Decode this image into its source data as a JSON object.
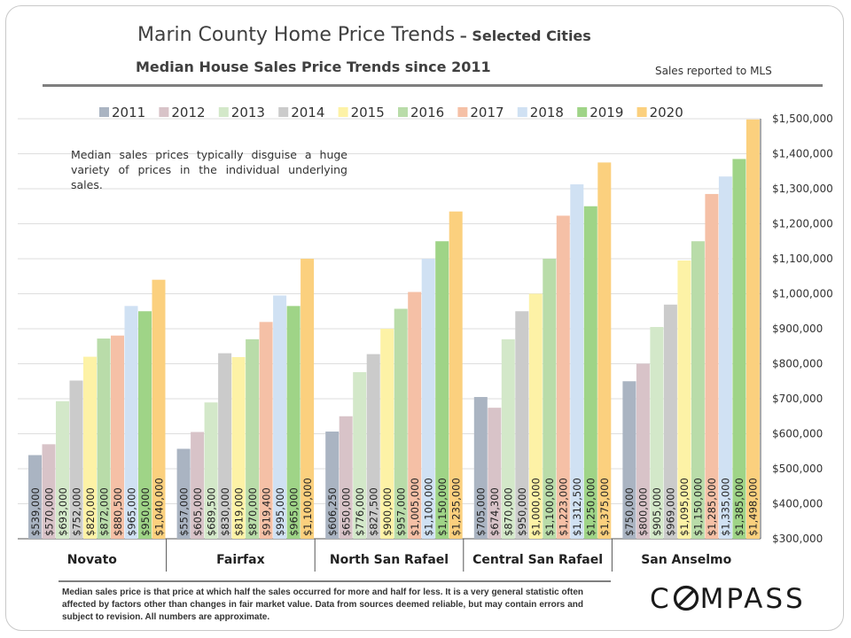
{
  "header": {
    "title_main": "Marin County Home Price Trends",
    "title_sub": " – Selected Cities",
    "subtitle": "Median House Sales Price Trends since 2011",
    "reported": "Sales reported to MLS"
  },
  "note": "Median sales prices typically disguise a huge variety of prices in the individual underlying sales.",
  "footnote": "Median sales price is that price at which half the sales occurred for more and half for less. It is a very general statistic often affected by factors other than changes in fair market value. Data from sources deemed reliable, but may contain errors and subject to revision. All numbers are approximate.",
  "logo": "COMPASS",
  "colors": {
    "2011": "#aab4c2",
    "2012": "#d8c3c8",
    "2013": "#d3e8c9",
    "2014": "#cbcbcb",
    "2015": "#fdf2a6",
    "2016": "#b9dca9",
    "2017": "#f5c0a6",
    "2018": "#d0e1f3",
    "2019": "#9fd487",
    "2020": "#fbd07e"
  },
  "chart_data": {
    "type": "bar",
    "categories": [
      "Novato",
      "Fairfax",
      "North San Rafael",
      "Central San Rafael",
      "San Anselmo"
    ],
    "series": [
      {
        "name": "2011",
        "values": [
          539000,
          557000,
          606250,
          705000,
          750000
        ],
        "labels": [
          "$539,000",
          "$557,000",
          "$606,250",
          "$705,000",
          "$750,000"
        ]
      },
      {
        "name": "2012",
        "values": [
          570000,
          605000,
          650000,
          674300,
          800000
        ],
        "labels": [
          "$570,000",
          "$605,000",
          "$650,000",
          "$674,300",
          "$800,000"
        ]
      },
      {
        "name": "2013",
        "values": [
          693000,
          689500,
          776000,
          870000,
          905000
        ],
        "labels": [
          "$693,000",
          "$689,500",
          "$776,000",
          "$870,000",
          "$905,000"
        ]
      },
      {
        "name": "2014",
        "values": [
          752000,
          830000,
          827500,
          950000,
          969000
        ],
        "labels": [
          "$752,000",
          "$830,000",
          "$827,500",
          "$950,000",
          "$969,000"
        ]
      },
      {
        "name": "2015",
        "values": [
          820000,
          819000,
          900000,
          1000000,
          1095000
        ],
        "labels": [
          "$820,000",
          "$819,000",
          "$900,000",
          "$1,000,000",
          "$1,095,000"
        ]
      },
      {
        "name": "2016",
        "values": [
          872000,
          870000,
          957000,
          1100000,
          1150000
        ],
        "labels": [
          "$872,000",
          "$870,000",
          "$957,000",
          "$1,100,000",
          "$1,150,000"
        ]
      },
      {
        "name": "2017",
        "values": [
          880500,
          919400,
          1005000,
          1223000,
          1285000
        ],
        "labels": [
          "$880,500",
          "$919,400",
          "$1,005,000",
          "$1,223,000",
          "$1,285,000"
        ]
      },
      {
        "name": "2018",
        "values": [
          965000,
          995000,
          1100000,
          1312500,
          1335000
        ],
        "labels": [
          "$965,000",
          "$995,000",
          "$1,100,000",
          "$1,312,500",
          "$1,335,000"
        ]
      },
      {
        "name": "2019",
        "values": [
          950000,
          965000,
          1150000,
          1250000,
          1385000
        ],
        "labels": [
          "$950,000",
          "$965,000",
          "$1,150,000",
          "$1,250,000",
          "$1,385,000"
        ]
      },
      {
        "name": "2020",
        "values": [
          1040000,
          1100000,
          1235000,
          1375000,
          1498000
        ],
        "labels": [
          "$1,040,000",
          "$1,100,000",
          "$1,235,000",
          "$1,375,000",
          "$1,498,000"
        ]
      }
    ],
    "ylim": [
      300000,
      1500000
    ],
    "yticks": [
      "$300,000",
      "$400,000",
      "$500,000",
      "$600,000",
      "$700,000",
      "$800,000",
      "$900,000",
      "$1,000,000",
      "$1,100,000",
      "$1,200,000",
      "$1,300,000",
      "$1,400,000",
      "$1,500,000"
    ],
    "ytick_values": [
      300000,
      400000,
      500000,
      600000,
      700000,
      800000,
      900000,
      1000000,
      1100000,
      1200000,
      1300000,
      1400000,
      1500000
    ],
    "grid": true,
    "legend": "top",
    "y_axis_side": "right"
  }
}
